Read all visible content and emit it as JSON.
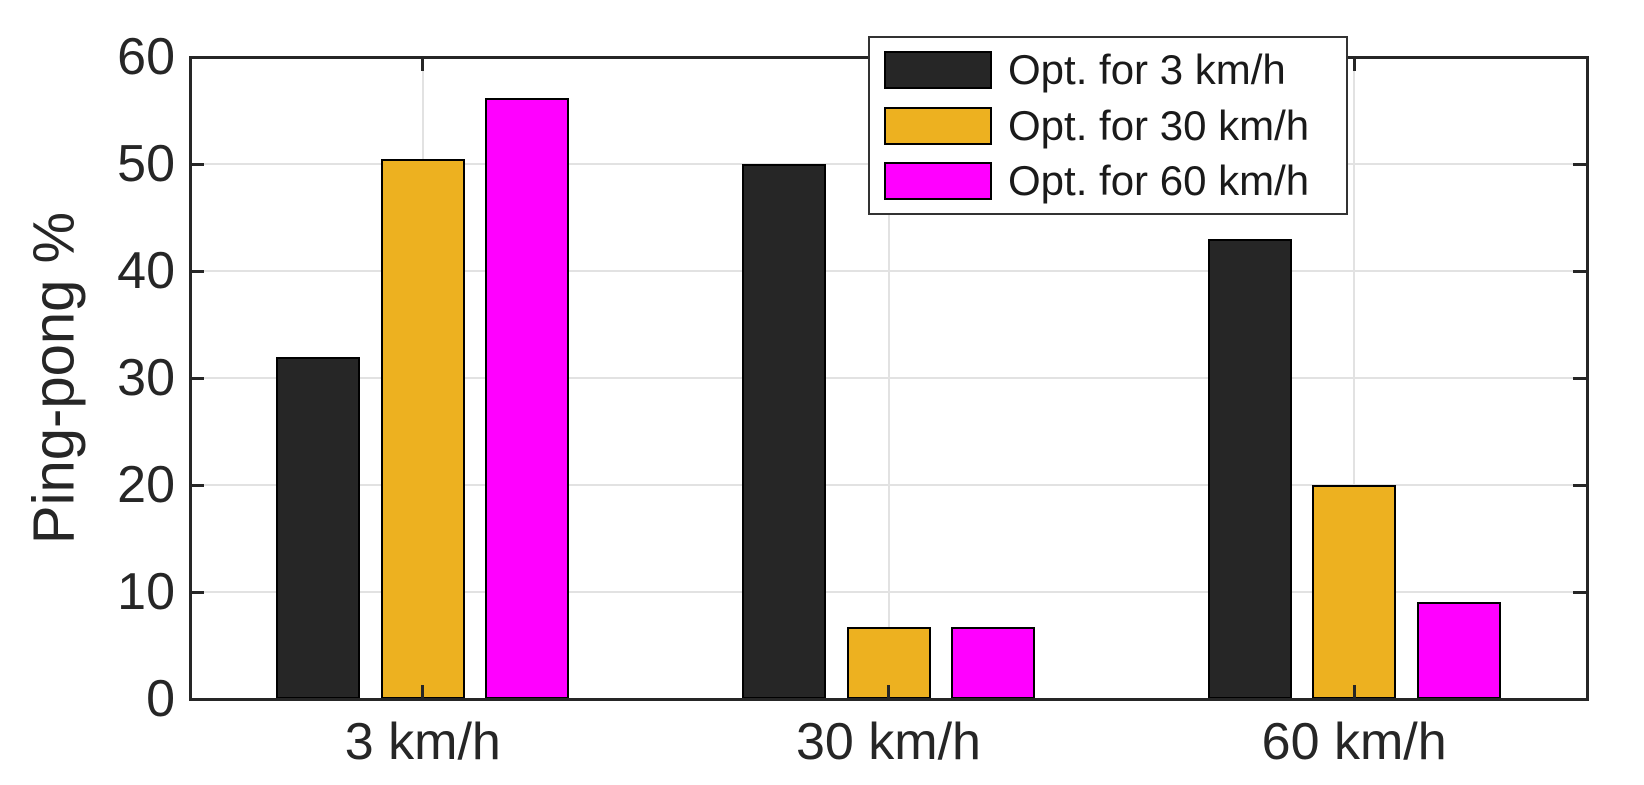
{
  "chart_data": {
    "type": "bar",
    "title": "",
    "xlabel": "",
    "ylabel": "Ping-pong %",
    "categories": [
      "3 km/h",
      "30 km/h",
      "60 km/h"
    ],
    "series": [
      {
        "name": "Opt. for 3 km/h",
        "color": "#262626",
        "values": [
          32,
          50,
          43
        ]
      },
      {
        "name": "Opt. for 30 km/h",
        "color": "#EDB120",
        "values": [
          50.5,
          6.7,
          20
        ]
      },
      {
        "name": "Opt. for 60 km/h",
        "color": "#FF00FF",
        "values": [
          56.2,
          6.7,
          9.1
        ]
      }
    ],
    "ylim": [
      0,
      60
    ],
    "yticks": [
      0,
      10,
      20,
      30,
      40,
      50,
      60
    ],
    "grid": true,
    "legend_position": "top-right",
    "bar_edge_color": "#000000",
    "axis_color": "#262626",
    "grid_color": "#e2e2e2",
    "background": "#ffffff"
  }
}
